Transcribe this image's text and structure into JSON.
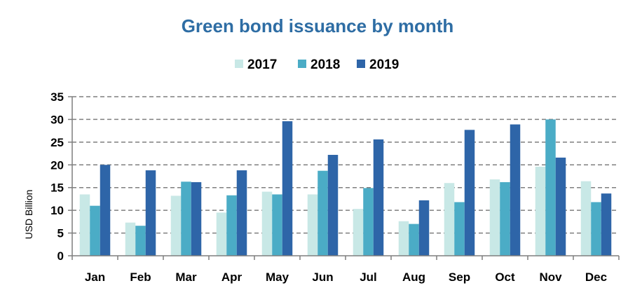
{
  "chart_data": {
    "type": "bar",
    "title": "Green bond issuance by month",
    "ylabel": "USD Billion",
    "xlabel": "",
    "ylim": [
      0,
      35
    ],
    "yticks": [
      0,
      5,
      10,
      15,
      20,
      25,
      30,
      35
    ],
    "grid": true,
    "legend_position": "top-center",
    "categories": [
      "Jan",
      "Feb",
      "Mar",
      "Apr",
      "May",
      "Jun",
      "Jul",
      "Aug",
      "Sep",
      "Oct",
      "Nov",
      "Dec"
    ],
    "series": [
      {
        "name": "2017",
        "color": "#C8E8E6",
        "values": [
          13.5,
          7.3,
          13.2,
          9.5,
          14.1,
          13.5,
          10.3,
          7.6,
          16.0,
          16.8,
          19.6,
          16.4
        ]
      },
      {
        "name": "2018",
        "color": "#4BACC6",
        "values": [
          11.0,
          6.6,
          16.3,
          13.3,
          13.5,
          18.7,
          14.9,
          7.0,
          11.8,
          16.2,
          30.0,
          11.8
        ]
      },
      {
        "name": "2019",
        "color": "#2E65A8",
        "values": [
          20.0,
          18.8,
          16.2,
          18.8,
          29.6,
          22.2,
          25.6,
          12.2,
          27.7,
          28.9,
          21.6,
          13.7
        ]
      }
    ]
  }
}
